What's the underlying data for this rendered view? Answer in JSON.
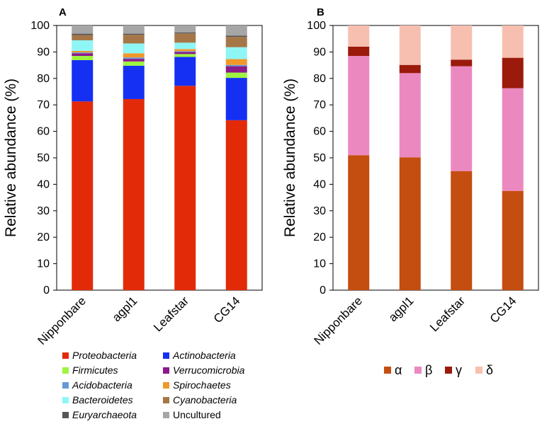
{
  "chart_data": [
    {
      "type": "bar",
      "stacked": true,
      "panel_label": "A",
      "ylabel": "Relative abundance (%)",
      "ylim": [
        0,
        100
      ],
      "yticks": [
        0,
        10,
        20,
        30,
        40,
        50,
        60,
        70,
        80,
        90,
        100
      ],
      "categories": [
        "Nipponbare",
        "agpl1",
        "Leafstar",
        "CG14"
      ],
      "series": [
        {
          "name": "Proteobacteria",
          "color": "#e32a08",
          "values": [
            71.3,
            72.2,
            77.2,
            64.2
          ]
        },
        {
          "name": "Actinobacteria",
          "color": "#1530f2",
          "values": [
            15.6,
            12.6,
            10.9,
            16.0
          ]
        },
        {
          "name": "Firmicutes",
          "color": "#9df540",
          "values": [
            1.6,
            1.6,
            1.1,
            2.0
          ]
        },
        {
          "name": "Verrucomicrobia",
          "color": "#8b1a8b",
          "values": [
            1.0,
            1.0,
            0.8,
            2.4
          ]
        },
        {
          "name": "Acidobacteria",
          "color": "#6699d8",
          "values": [
            0.3,
            0.5,
            0.3,
            0.5
          ]
        },
        {
          "name": "Spirochaetes",
          "color": "#f0982b",
          "values": [
            0.6,
            1.6,
            0.8,
            2.2
          ]
        },
        {
          "name": "Bacteroidetes",
          "color": "#8ff6f6",
          "values": [
            4.0,
            3.7,
            2.4,
            4.5
          ]
        },
        {
          "name": "Cyanobacteria",
          "color": "#a57748",
          "values": [
            2.0,
            3.3,
            3.5,
            3.9
          ]
        },
        {
          "name": "Euryarchaeota",
          "color": "#555555",
          "values": [
            0.5,
            0.4,
            0.4,
            0.5
          ]
        },
        {
          "name": "Uncultured",
          "color": "#a6a6a6",
          "values": [
            3.1,
            3.1,
            2.6,
            3.8
          ]
        }
      ],
      "legend_position": "bottom"
    },
    {
      "type": "bar",
      "stacked": true,
      "panel_label": "B",
      "ylabel": "Relative abundance (%)",
      "ylim": [
        0,
        100
      ],
      "yticks": [
        0,
        10,
        20,
        30,
        40,
        50,
        60,
        70,
        80,
        90,
        100
      ],
      "categories": [
        "Nipponbare",
        "agpl1",
        "Leafstar",
        "CG14"
      ],
      "series": [
        {
          "name": "α",
          "color": "#c44d10",
          "values": [
            51.0,
            50.2,
            45.0,
            37.5
          ]
        },
        {
          "name": "β",
          "color": "#ec88c0",
          "values": [
            37.5,
            31.8,
            39.6,
            38.8
          ]
        },
        {
          "name": "γ",
          "color": "#9b1a0c",
          "values": [
            3.5,
            3.1,
            2.5,
            11.5
          ]
        },
        {
          "name": "δ",
          "color": "#f7bfb0",
          "values": [
            8.0,
            14.9,
            12.9,
            12.2
          ]
        }
      ],
      "legend_position": "bottom"
    }
  ]
}
